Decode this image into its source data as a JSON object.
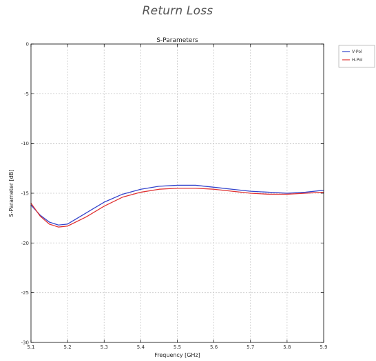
{
  "page": {
    "title": "Return Loss"
  },
  "chart_data": {
    "type": "line",
    "title": "S-Parameters",
    "xlabel": "Frequency [GHz]",
    "ylabel": "S-Parameter [dB]",
    "xlim": [
      5.1,
      5.9
    ],
    "ylim": [
      -30,
      0
    ],
    "xticks": [
      5.1,
      5.2,
      5.3,
      5.4,
      5.5,
      5.6,
      5.7,
      5.8,
      5.9
    ],
    "xtick_labels": [
      "5.1",
      "5.2",
      "5.3",
      "5.4",
      "5.5",
      "5.6",
      "5.7",
      "5.8",
      "5.9"
    ],
    "yticks": [
      0,
      -5,
      -10,
      -15,
      -20,
      -25,
      -30
    ],
    "ytick_labels": [
      "0",
      "-5",
      "-10",
      "-15",
      "-20",
      "-25",
      "-30"
    ],
    "grid": true,
    "legend_position": "outside-top-right",
    "x": [
      5.1,
      5.125,
      5.15,
      5.175,
      5.2,
      5.25,
      5.3,
      5.35,
      5.4,
      5.45,
      5.5,
      5.55,
      5.6,
      5.65,
      5.7,
      5.75,
      5.8,
      5.85,
      5.9
    ],
    "series": [
      {
        "name": "V-Pol",
        "color": "#3344cc",
        "values": [
          -16.2,
          -17.2,
          -17.9,
          -18.2,
          -18.1,
          -17.0,
          -15.9,
          -15.1,
          -14.6,
          -14.3,
          -14.2,
          -14.2,
          -14.4,
          -14.6,
          -14.8,
          -14.9,
          -15.0,
          -14.9,
          -14.7
        ]
      },
      {
        "name": "H-Pol",
        "color": "#e03333",
        "values": [
          -16.0,
          -17.3,
          -18.1,
          -18.4,
          -18.3,
          -17.4,
          -16.3,
          -15.4,
          -14.9,
          -14.6,
          -14.5,
          -14.5,
          -14.6,
          -14.8,
          -15.0,
          -15.1,
          -15.1,
          -15.0,
          -14.9
        ]
      }
    ]
  }
}
